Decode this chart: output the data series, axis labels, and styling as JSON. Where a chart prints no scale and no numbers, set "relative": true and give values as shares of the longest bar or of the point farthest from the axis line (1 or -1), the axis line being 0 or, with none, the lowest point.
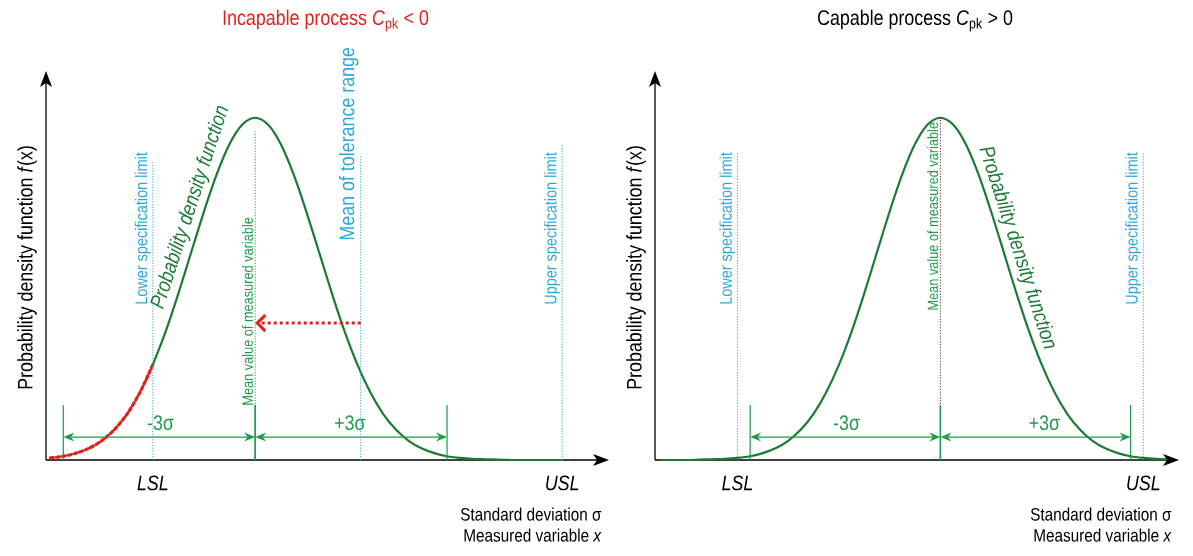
{
  "chart_data": [
    {
      "type": "line",
      "relative": true,
      "title": "Incapable process *C*$_{pk}$ < 0",
      "ylabel": "Probability density function *f*(x)",
      "xlabel": "Standard deviation σ",
      "categories": [
        null,
        null,
        null,
        null,
        null,
        null,
        null,
        null,
        "LSL",
        null,
        null,
        null,
        null,
        null,
        null,
        null,
        null,
        null,
        null,
        null,
        null,
        null,
        null,
        null,
        null,
        null,
        null,
        null,
        null,
        null,
        null,
        null,
        null,
        null,
        null,
        null,
        null,
        null,
        null,
        null,
        "USL",
        null,
        null,
        null
      ],
      "series": [
        {
          "color": "#e0201b",
          "line_style": "dotted",
          "values": [
            0.006,
            0.011,
            0.02,
            0.034,
            0.056,
            0.089,
            0.135,
            0.198,
            0.278,
            null,
            null,
            null,
            null,
            null,
            null,
            null,
            null,
            null,
            null,
            null,
            null,
            null,
            null,
            null,
            null,
            null,
            null,
            null,
            null,
            null,
            null,
            null,
            null,
            null,
            null,
            null,
            null,
            null,
            null,
            null,
            null,
            null,
            null,
            null
          ]
        },
        {
          "color": "#1c7a33",
          "line_style": "solid",
          "values": [
            null,
            null,
            null,
            null,
            null,
            null,
            null,
            null,
            0.278,
            0.375,
            0.487,
            0.607,
            0.726,
            0.835,
            0.923,
            0.98,
            1,
            0.98,
            0.923,
            0.835,
            0.726,
            0.607,
            0.487,
            0.375,
            0.278,
            0.198,
            0.135,
            0.089,
            0.056,
            0.034,
            0.02,
            0.011,
            0.006,
            0.003,
            0.002,
            0.001,
            0,
            0,
            0,
            0,
            0,
            null,
            null,
            null
          ]
        }
      ],
      "ref_lines": [
        {
          "axis": "x",
          "value": "LSL",
          "label": "Lower specification limit",
          "color": "#2aa7df",
          "line_style": "dotted"
        },
        {
          "axis": "x",
          "value": "USL",
          "label": "Upper specification limit",
          "color": "#2aa7df",
          "line_style": "dotted"
        }
      ],
      "annotations": [
        "Probability density function",
        "-3σ",
        "+3σ",
        "Mean value of measured variable",
        "Mean of tolerance range",
        "Measured variable *x*"
      ]
    },
    {
      "type": "line",
      "relative": true,
      "title": "Capable process *C*$_{pk}$ > 0",
      "ylabel": "Probability density function *f*(x)",
      "xlabel": "Standard deviation σ",
      "categories": [
        null,
        null,
        null,
        null,
        null,
        null,
        "LSL",
        null,
        null,
        null,
        null,
        null,
        null,
        null,
        null,
        null,
        null,
        null,
        null,
        null,
        null,
        null,
        null,
        null,
        null,
        null,
        null,
        null,
        null,
        null,
        null,
        null,
        null,
        null,
        null,
        null,
        null,
        null,
        "USL",
        null,
        null
      ],
      "series": [
        {
          "color": "#1c7a33",
          "line_style": "solid",
          "values": [
            0,
            0,
            0,
            0.001,
            0.002,
            0.003,
            0.006,
            0.011,
            0.02,
            0.034,
            0.056,
            0.089,
            0.135,
            0.198,
            0.278,
            0.375,
            0.487,
            0.607,
            0.726,
            0.835,
            0.923,
            0.98,
            1,
            0.98,
            0.923,
            0.835,
            0.726,
            0.607,
            0.487,
            0.375,
            0.278,
            0.198,
            0.135,
            0.089,
            0.056,
            0.034,
            0.02,
            0.011,
            0.006,
            0.003,
            0.002
          ]
        }
      ],
      "ref_lines": [
        {
          "axis": "x",
          "value": "LSL",
          "label": "Lower specification limit",
          "color": "#2aa7df",
          "line_style": "dotted"
        },
        {
          "axis": "x",
          "value": "USL",
          "label": "Upper specification limit",
          "color": "#2aa7df",
          "line_style": "dotted"
        }
      ],
      "annotations": [
        "Probability density function",
        "-3σ",
        "+3σ",
        "Mean value of measured variable",
        "Measured variable *x*"
      ]
    }
  ]
}
